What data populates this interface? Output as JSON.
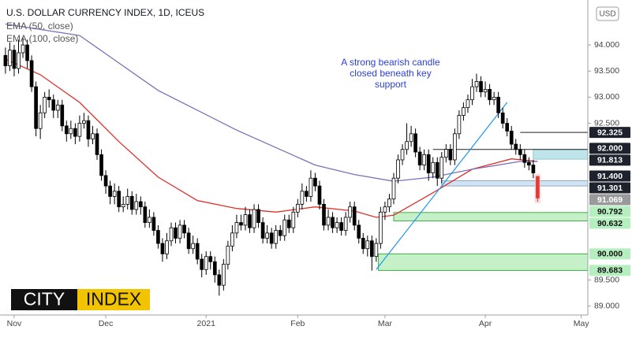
{
  "chart_data": {
    "type": "candlestick",
    "title": "U.S. DOLLAR CURRENCY INDEX, 1D, ICEUS",
    "currency": "USD",
    "brand": [
      "CITY",
      "INDEX"
    ],
    "annotation": [
      "A strong bearish candle",
      "closed beneath key",
      "support"
    ],
    "annotation_color": "#2b3fd9",
    "ylim": [
      88.83,
      94.86
    ],
    "yticks": [
      {
        "value": 89,
        "label": "89.000"
      },
      {
        "value": 89.5,
        "label": "89.500"
      },
      {
        "value": 92.5,
        "label": "92.500"
      },
      {
        "value": 93,
        "label": "93.000"
      },
      {
        "value": 93.5,
        "label": "93.500"
      },
      {
        "value": 94,
        "label": "94.000"
      }
    ],
    "xlim": [
      -1.25,
      133.5
    ],
    "xticks": [
      {
        "value": 2,
        "label": "Nov"
      },
      {
        "value": 23,
        "label": "Dec"
      },
      {
        "value": 46,
        "label": "2021"
      },
      {
        "value": 67,
        "label": "Feb"
      },
      {
        "value": 87,
        "label": "Mar"
      },
      {
        "value": 110,
        "label": "Apr"
      },
      {
        "value": 132,
        "label": "May"
      }
    ],
    "open": [
      93.8,
      93.6,
      93.9,
      93.55,
      93.85,
      94.0,
      93.7,
      93.2,
      92.4,
      92.7,
      93.0,
      92.95,
      92.75,
      92.85,
      92.45,
      92.3,
      92.4,
      92.25,
      92.5,
      92.55,
      92.2,
      92.3,
      91.9,
      91.5,
      91.3,
      91.1,
      91.2,
      90.9,
      90.95,
      91.1,
      90.85,
      91.0,
      90.9,
      90.6,
      90.7,
      90.45,
      90.2,
      90.0,
      90.25,
      90.5,
      90.3,
      90.55,
      90.4,
      90.1,
      90.2,
      89.9,
      89.7,
      89.95,
      89.85,
      89.6,
      89.4,
      89.8,
      90.15,
      90.4,
      90.6,
      90.55,
      90.75,
      90.5,
      90.85,
      90.6,
      90.3,
      90.4,
      90.2,
      90.45,
      90.35,
      90.65,
      90.5,
      90.8,
      90.95,
      91.2,
      91.1,
      91.45,
      91.3,
      90.95,
      90.55,
      90.7,
      90.5,
      90.6,
      90.45,
      90.7,
      90.9,
      90.55,
      90.3,
      90.1,
      90.25,
      89.95,
      90.2,
      90.8,
      90.9,
      91.05,
      91.45,
      91.8,
      92.0,
      92.15,
      92.3,
      91.95,
      91.7,
      91.9,
      91.55,
      91.75,
      91.45,
      91.85,
      92.0,
      91.8,
      92.3,
      92.65,
      92.8,
      92.95,
      93.2,
      93.3,
      93.1,
      93.15,
      92.95,
      93.0,
      92.7,
      92.5,
      92.35,
      92.1,
      92.0,
      91.9,
      91.75,
      91.7,
      91.48
    ],
    "high": [
      93.95,
      94.05,
      94.0,
      94.1,
      94.15,
      94.1,
      93.8,
      93.3,
      92.85,
      93.1,
      93.15,
      93.05,
      92.95,
      92.95,
      92.55,
      92.55,
      92.5,
      92.65,
      92.7,
      92.65,
      92.45,
      92.4,
      92.0,
      91.6,
      91.4,
      91.35,
      91.3,
      91.1,
      91.25,
      91.2,
      91.15,
      91.1,
      91.0,
      90.85,
      90.8,
      90.55,
      90.3,
      90.4,
      90.6,
      90.6,
      90.65,
      90.65,
      90.5,
      90.35,
      90.3,
      90.0,
      90.05,
      90.05,
      89.95,
      89.7,
      89.9,
      90.25,
      90.55,
      90.75,
      90.75,
      90.9,
      90.85,
      90.95,
      90.95,
      90.7,
      90.55,
      90.5,
      90.55,
      90.55,
      90.75,
      90.75,
      90.9,
      91.05,
      91.35,
      91.3,
      91.6,
      91.55,
      91.4,
      91.05,
      90.85,
      90.8,
      90.7,
      90.7,
      90.8,
      91.0,
      91.0,
      90.65,
      90.4,
      90.35,
      90.35,
      90.3,
      90.9,
      91.0,
      91.15,
      91.55,
      91.9,
      92.1,
      92.5,
      92.45,
      92.4,
      92.05,
      92.0,
      92.0,
      91.85,
      91.85,
      91.95,
      92.1,
      92.1,
      92.4,
      92.75,
      92.9,
      93.05,
      93.35,
      93.45,
      93.4,
      93.3,
      93.25,
      93.1,
      93.1,
      92.8,
      92.6,
      92.45,
      92.2,
      92.1,
      92.0,
      91.85,
      91.8,
      91.5
    ],
    "low": [
      93.45,
      93.5,
      93.4,
      93.45,
      93.75,
      93.55,
      93.1,
      92.25,
      92.2,
      92.6,
      92.8,
      92.6,
      92.6,
      92.35,
      92.15,
      92.2,
      92.1,
      92.15,
      92.4,
      92.05,
      92.1,
      91.8,
      91.4,
      91.15,
      90.95,
      90.95,
      90.8,
      90.8,
      90.85,
      90.75,
      90.75,
      90.75,
      90.5,
      90.5,
      90.35,
      90.1,
      89.85,
      89.9,
      90.15,
      90.2,
      90.2,
      90.3,
      90.0,
      90.0,
      89.8,
      89.55,
      89.6,
      89.7,
      89.45,
      89.2,
      89.3,
      89.7,
      90.05,
      90.3,
      90.45,
      90.45,
      90.4,
      90.4,
      90.5,
      90.2,
      90.2,
      90.1,
      90.1,
      90.25,
      90.25,
      90.4,
      90.4,
      90.7,
      90.85,
      91.0,
      91.0,
      91.2,
      90.85,
      90.45,
      90.45,
      90.4,
      90.4,
      90.35,
      90.35,
      90.6,
      90.45,
      90.2,
      90.0,
      89.95,
      89.68,
      89.85,
      90.1,
      90.65,
      90.8,
      90.95,
      91.35,
      91.7,
      91.9,
      92.05,
      91.85,
      91.6,
      91.6,
      91.4,
      91.45,
      91.3,
      91.35,
      91.75,
      91.7,
      91.7,
      92.2,
      92.55,
      92.7,
      92.85,
      93.1,
      93.0,
      93.0,
      92.85,
      92.85,
      92.6,
      92.4,
      92.25,
      92.0,
      91.9,
      91.8,
      91.65,
      91.6,
      91.45,
      91.0
    ],
    "close": [
      93.6,
      93.9,
      93.55,
      93.85,
      94.0,
      93.7,
      93.2,
      92.4,
      92.7,
      93.0,
      92.95,
      92.75,
      92.85,
      92.45,
      92.3,
      92.4,
      92.25,
      92.5,
      92.55,
      92.2,
      92.3,
      91.9,
      91.5,
      91.3,
      91.1,
      91.2,
      90.9,
      90.95,
      91.1,
      90.85,
      91.0,
      90.9,
      90.6,
      90.7,
      90.45,
      90.2,
      90.0,
      90.25,
      90.5,
      90.3,
      90.55,
      90.4,
      90.1,
      90.2,
      89.9,
      89.7,
      89.95,
      89.85,
      89.6,
      89.4,
      89.8,
      90.15,
      90.4,
      90.6,
      90.55,
      90.75,
      90.5,
      90.85,
      90.6,
      90.3,
      90.4,
      90.2,
      90.45,
      90.35,
      90.65,
      90.5,
      90.8,
      90.95,
      91.2,
      91.1,
      91.45,
      91.3,
      90.95,
      90.55,
      90.7,
      90.5,
      90.6,
      90.45,
      90.7,
      90.9,
      90.55,
      90.3,
      90.1,
      90.25,
      89.95,
      90.2,
      90.8,
      90.9,
      91.05,
      91.45,
      91.8,
      92.0,
      92.15,
      92.3,
      91.95,
      91.7,
      91.9,
      91.55,
      91.75,
      91.45,
      91.85,
      92.0,
      91.8,
      92.3,
      92.65,
      92.8,
      92.95,
      93.2,
      93.3,
      93.1,
      93.15,
      92.95,
      93.0,
      92.7,
      92.5,
      92.35,
      92.1,
      92.0,
      91.9,
      91.75,
      91.7,
      91.55,
      91.07
    ],
    "up_color": "#ffffff",
    "down_color": "#000000",
    "last_color": "#e53935",
    "series": [
      {
        "name": "EMA (50, close)",
        "color": "#e0302a",
        "x": [
          0,
          8,
          17,
          26,
          35,
          44,
          53,
          62,
          71,
          80,
          85,
          89,
          98,
          107,
          116,
          122
        ],
        "values": [
          93.73,
          93.43,
          92.9,
          92.15,
          91.47,
          91.02,
          90.87,
          90.8,
          90.9,
          90.82,
          90.7,
          90.74,
          91.17,
          91.62,
          91.82,
          91.77
        ]
      },
      {
        "name": "EMA (100, close)",
        "color": "#7e6fb8",
        "x": [
          0,
          17,
          35,
          53,
          71,
          80,
          89,
          98,
          107,
          118,
          122
        ],
        "values": [
          94.4,
          94.18,
          93.13,
          92.37,
          91.7,
          91.52,
          91.39,
          91.47,
          91.62,
          91.77,
          91.77
        ]
      }
    ],
    "trendline": {
      "color": "#2196f3",
      "x": [
        85,
        115
      ],
      "values": [
        89.7,
        92.9
      ]
    },
    "zones": [
      {
        "from": 91.813,
        "to": 92.0,
        "start": 121,
        "fill": "#bfe4ea",
        "stroke": "#8fc9d4"
      },
      {
        "from": 91.301,
        "to": 91.4,
        "start": 100,
        "fill": "#d2e4f3",
        "stroke": "#8aa9c8"
      },
      {
        "from": 90.632,
        "to": 90.792,
        "start": 89,
        "fill": "#c6f1c8",
        "stroke": "#3cb043"
      },
      {
        "from": 89.683,
        "to": 90.0,
        "start": 85.5,
        "fill": "#c6f1c8",
        "stroke": "#3cb043"
      }
    ],
    "levels": [
      {
        "value": 92.325,
        "label": "92.325",
        "style": "dark",
        "start": 118
      },
      {
        "value": 92.0,
        "label": "92.000",
        "style": "dark",
        "start": 98
      },
      {
        "value": 91.813,
        "label": "91.813",
        "style": "dark"
      },
      {
        "value": 91.4,
        "label": "91.400",
        "style": "dark"
      },
      {
        "value": 91.301,
        "label": "91.301",
        "style": "dark"
      },
      {
        "value": 91.069,
        "label": "91.069",
        "style": "gray"
      },
      {
        "value": 90.792,
        "label": "90.792",
        "style": "green"
      },
      {
        "value": 90.632,
        "label": "90.632",
        "style": "green"
      },
      {
        "value": 90.0,
        "label": "90.000",
        "style": "green"
      },
      {
        "value": 89.683,
        "label": "89.683",
        "style": "green"
      }
    ],
    "styles": {
      "dark": {
        "bg": "#1e222d",
        "fg": "#ffffff"
      },
      "gray": {
        "bg": "#9a9a9a",
        "fg": "#ffffff"
      },
      "green": {
        "bg": "#b6efbf",
        "fg": "#111111"
      }
    }
  }
}
